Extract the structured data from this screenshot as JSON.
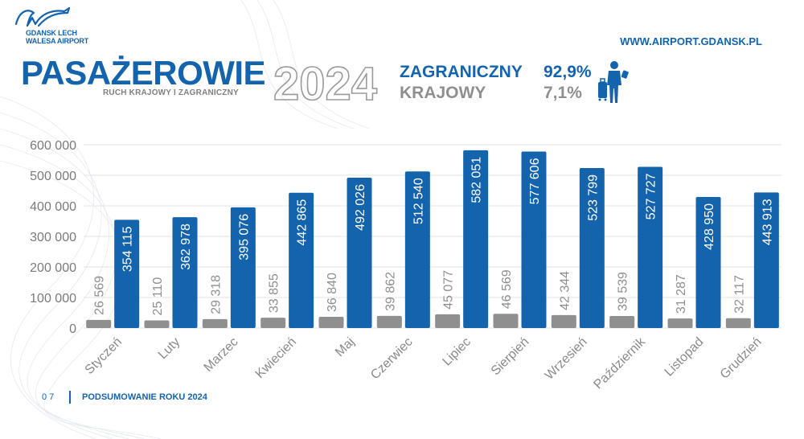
{
  "header": {
    "logo_line1": "GDANSK LECH",
    "logo_line2": "WALESA AIRPORT",
    "url": "WWW.AIRPORT.GDANSK.PL",
    "title": "PASAŻEROWIE",
    "year": "2024",
    "subtitle": "RUCH KRAJOWY I ZAGRANICZNY"
  },
  "summary": {
    "international_label": "ZAGRANICZNY",
    "international_pct": "92,9%",
    "domestic_label": "KRAJOWY",
    "domestic_pct": "7,1%",
    "icon": "traveler-with-suitcase-icon"
  },
  "chart_data": {
    "type": "bar",
    "categories": [
      "Styczeń",
      "Luty",
      "Marzec",
      "Kwiecień",
      "Maj",
      "Czerwiec",
      "Lipiec",
      "Sierpień",
      "Wrzesień",
      "Październik",
      "Listopad",
      "Grudzień"
    ],
    "series": [
      {
        "name": "KRAJOWY",
        "color": "#8f8f8f",
        "values": [
          26569,
          25110,
          29318,
          33855,
          36840,
          39862,
          45077,
          46569,
          42344,
          39539,
          31287,
          32117
        ],
        "labels": [
          "26 569",
          "25 110",
          "29 318",
          "33 855",
          "36 840",
          "39 862",
          "45 077",
          "46 569",
          "42 344",
          "39 539",
          "31 287",
          "32 117"
        ]
      },
      {
        "name": "ZAGRANICZNY",
        "color": "#1463ad",
        "values": [
          354115,
          362978,
          395076,
          442865,
          492026,
          512540,
          582051,
          577606,
          523799,
          527727,
          428950,
          443913
        ],
        "labels": [
          "354 115",
          "362 978",
          "395 076",
          "442 865",
          "492 026",
          "512 540",
          "582 051",
          "577 606",
          "523 799",
          "527 727",
          "428 950",
          "443 913"
        ]
      }
    ],
    "yticks": [
      0,
      100000,
      200000,
      300000,
      400000,
      500000,
      600000
    ],
    "ytick_labels": [
      "0",
      "100 000",
      "200 000",
      "300 000",
      "400 000",
      "500 000",
      "600 000"
    ],
    "ylim": [
      0,
      600000
    ],
    "grid": true
  },
  "footer": {
    "page_number": "07",
    "text": "PODSUMOWANIE ROKU 2024"
  }
}
